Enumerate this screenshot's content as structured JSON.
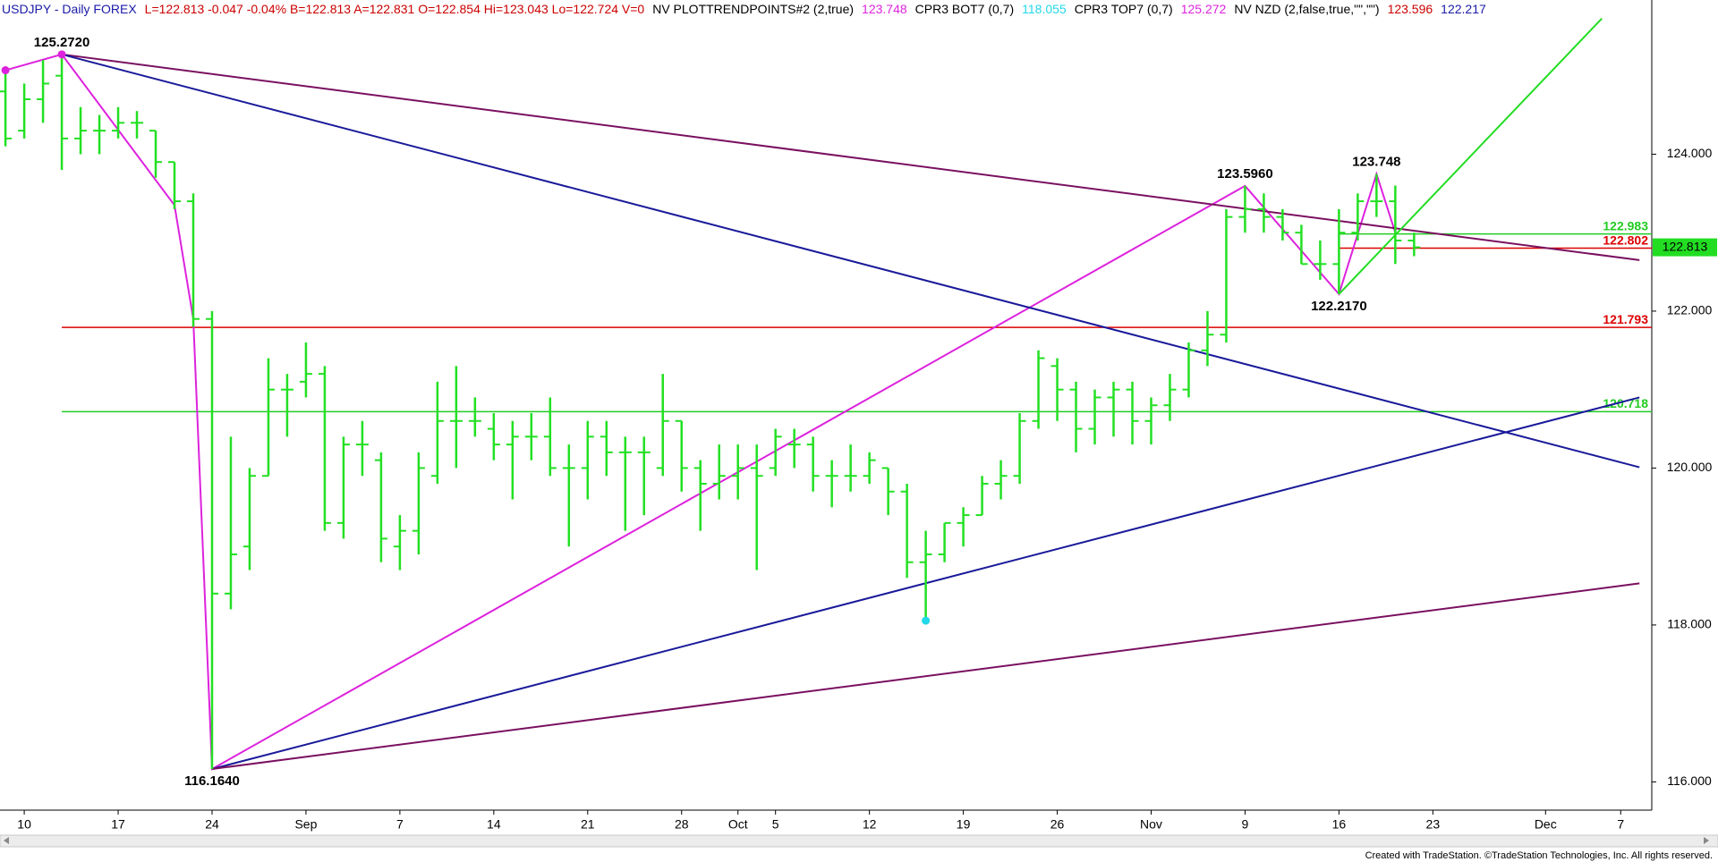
{
  "header": [
    {
      "text": "USDJPY - Daily FOREX",
      "color": "#1a1aa8"
    },
    {
      "text": "L=122.813 -0.047 -0.04% B=122.813 A=122.831 O=122.854 Hi=123.043 Lo=122.724 V=0",
      "color": "#cc0000"
    },
    {
      "text": "NV PLOTTRENDPOINTS#2 (2,true)",
      "color": "#000000"
    },
    {
      "text": "123.748",
      "color": "#dd22dd"
    },
    {
      "text": "CPR3 BOT7 (0,7)",
      "color": "#000000"
    },
    {
      "text": "118.055",
      "color": "#22d8e8"
    },
    {
      "text": "CPR3 TOP7 (0,7)",
      "color": "#000000"
    },
    {
      "text": "125.272",
      "color": "#dd22dd"
    },
    {
      "text": "NV NZD (2,false,true,\"\",\"\")",
      "color": "#000000"
    },
    {
      "text": "123.596",
      "color": "#cc0000"
    },
    {
      "text": "122.217",
      "color": "#1a1aa8"
    }
  ],
  "footer": "Created with TradeStation. ©TradeStation Technologies, Inc. All rights reserved.",
  "chart_data": {
    "type": "ohlc",
    "color": "#22e022",
    "categories": [
      null,
      "10",
      null,
      null,
      null,
      null,
      "17",
      null,
      null,
      null,
      null,
      "24",
      null,
      null,
      null,
      null,
      "Sep",
      null,
      null,
      null,
      null,
      "7",
      null,
      null,
      null,
      null,
      "14",
      null,
      null,
      null,
      null,
      "21",
      null,
      null,
      null,
      null,
      "28",
      null,
      null,
      "Oct",
      null,
      "5",
      null,
      null,
      null,
      null,
      "12",
      null,
      null,
      null,
      null,
      "19",
      null,
      null,
      null,
      null,
      "26",
      null,
      null,
      null,
      null,
      "Nov",
      null,
      null,
      null,
      null,
      "9",
      null,
      null,
      null,
      null,
      "16",
      null,
      null,
      null,
      null,
      "23",
      null,
      null,
      null,
      null,
      null,
      "Dec",
      null,
      null,
      null,
      "7",
      null
    ],
    "open": [
      124.8,
      124.3,
      124.7,
      125.0,
      124.2,
      124.3,
      124.3,
      124.4,
      124.3,
      123.9,
      123.4,
      121.9,
      118.4,
      119.0,
      119.9,
      121.0,
      121.1,
      121.2,
      119.3,
      120.3,
      120.1,
      119.0,
      119.2,
      119.9,
      120.6,
      120.6,
      120.5,
      120.3,
      120.4,
      120.4,
      120.0,
      120.0,
      120.4,
      120.2,
      120.2,
      120.0,
      120.6,
      120.0,
      119.8,
      119.9,
      120.0,
      120.0,
      120.3,
      120.3,
      119.9,
      119.9,
      119.9,
      120.0,
      119.7,
      118.8,
      118.9,
      119.3,
      119.4,
      119.8,
      119.9,
      120.6,
      121.3,
      121.0,
      120.5,
      120.9,
      121.0,
      120.6,
      120.8,
      121.0,
      121.5,
      121.7,
      123.2,
      123.3,
      123.2,
      123.0,
      122.6,
      122.6,
      123.0,
      123.4,
      123.4,
      122.9,
      null,
      null,
      null,
      null,
      null,
      null,
      null,
      null,
      null,
      null,
      null,
      null
    ],
    "high": [
      125.07,
      124.9,
      125.2,
      125.272,
      124.6,
      124.5,
      124.6,
      124.55,
      124.3,
      123.9,
      123.5,
      122.0,
      120.4,
      120.0,
      121.4,
      121.2,
      121.6,
      121.3,
      120.4,
      120.6,
      120.2,
      119.4,
      120.2,
      121.1,
      121.3,
      120.9,
      120.7,
      120.6,
      120.7,
      120.9,
      120.3,
      120.6,
      120.6,
      120.4,
      120.4,
      121.2,
      120.6,
      120.1,
      120.3,
      120.3,
      120.3,
      120.5,
      120.5,
      120.4,
      120.1,
      120.3,
      120.2,
      120.0,
      119.8,
      119.2,
      119.3,
      119.5,
      119.9,
      120.1,
      120.7,
      121.5,
      121.4,
      121.1,
      121.0,
      121.1,
      121.1,
      120.9,
      121.2,
      121.6,
      122.0,
      123.3,
      123.596,
      123.5,
      123.3,
      123.1,
      122.9,
      123.3,
      123.5,
      123.748,
      123.6,
      123.0,
      null,
      null,
      null,
      null,
      null,
      null,
      null,
      null,
      null,
      null,
      null,
      null
    ],
    "low": [
      124.1,
      124.2,
      124.4,
      123.8,
      124.0,
      124.0,
      124.2,
      124.2,
      123.7,
      123.3,
      121.8,
      116.164,
      118.2,
      118.7,
      119.9,
      120.4,
      120.9,
      119.2,
      119.1,
      119.9,
      118.8,
      118.7,
      118.9,
      119.8,
      120.0,
      120.4,
      120.1,
      119.6,
      120.1,
      119.9,
      119.0,
      119.6,
      119.9,
      119.2,
      119.4,
      119.9,
      119.7,
      119.2,
      119.6,
      119.6,
      118.7,
      119.9,
      120.0,
      119.7,
      119.5,
      119.7,
      119.8,
      119.4,
      118.6,
      118.055,
      118.8,
      119.0,
      119.4,
      119.6,
      119.8,
      120.5,
      120.6,
      120.2,
      120.3,
      120.4,
      120.3,
      120.3,
      120.6,
      120.9,
      121.3,
      121.6,
      123.0,
      123.0,
      122.9,
      122.6,
      122.4,
      122.217,
      122.9,
      123.2,
      122.6,
      122.7,
      null,
      null,
      null,
      null,
      null,
      null,
      null,
      null,
      null,
      null,
      null,
      null
    ],
    "close": [
      124.2,
      124.7,
      124.9,
      124.2,
      124.3,
      124.3,
      124.4,
      124.4,
      123.9,
      123.4,
      121.9,
      118.4,
      118.9,
      119.9,
      121.0,
      121.0,
      121.2,
      119.3,
      120.3,
      120.3,
      119.1,
      119.2,
      120.0,
      120.6,
      120.6,
      120.6,
      120.3,
      120.4,
      120.4,
      120.0,
      120.0,
      120.4,
      120.2,
      120.2,
      120.2,
      120.6,
      120.0,
      119.8,
      119.9,
      120.0,
      119.9,
      120.4,
      120.3,
      119.9,
      119.9,
      119.9,
      120.1,
      119.7,
      118.8,
      118.9,
      119.3,
      119.4,
      119.8,
      119.9,
      120.6,
      121.4,
      121.0,
      120.5,
      120.9,
      121.0,
      120.6,
      120.8,
      121.0,
      121.5,
      121.7,
      123.2,
      123.3,
      123.2,
      123.0,
      122.6,
      122.6,
      123.0,
      123.4,
      123.4,
      122.9,
      122.813,
      null,
      null,
      null,
      null,
      null,
      null,
      null,
      null,
      null,
      null,
      null,
      null
    ],
    "ylim": [
      115.64,
      125.76
    ],
    "yticks": [
      {
        "value": 116,
        "label": "116.000"
      },
      {
        "value": 118,
        "label": "118.000"
      },
      {
        "value": 120,
        "label": "120.000"
      },
      {
        "value": 122,
        "label": "122.000"
      },
      {
        "value": 124,
        "label": "124.000"
      }
    ],
    "trendlines": [
      {
        "color": "#dd22dd",
        "x": [
          0,
          3,
          9,
          10,
          11,
          66,
          71,
          73,
          74
        ],
        "y": [
          125.07,
          125.272,
          123.35,
          121.9,
          116.164,
          123.596,
          122.217,
          123.748,
          123.0
        ]
      },
      {
        "color": "#7a1060",
        "x": [
          3,
          87
        ],
        "y": [
          125.272,
          122.65
        ]
      },
      {
        "color": "#1a1a9a",
        "x": [
          3,
          87
        ],
        "y": [
          125.272,
          120.01
        ]
      },
      {
        "color": "#1a1a9a",
        "x": [
          11,
          87
        ],
        "y": [
          116.164,
          120.9
        ]
      },
      {
        "color": "#7a1060",
        "x": [
          11,
          87
        ],
        "y": [
          116.164,
          118.53
        ]
      },
      {
        "color": "#22dd22",
        "x": [
          71,
          85
        ],
        "y": [
          122.217,
          125.73
        ]
      }
    ],
    "levels": [
      {
        "value": 121.793,
        "color": "#dd0000",
        "from": 3
      },
      {
        "value": 120.718,
        "color": "#22cc22",
        "from": 3
      },
      {
        "value": 122.983,
        "color": "#22cc22",
        "from": 71
      },
      {
        "value": 122.802,
        "color": "#dd0000",
        "from": 71
      }
    ],
    "markers": [
      {
        "x": 0,
        "value": 125.07,
        "color": "#dd22dd"
      },
      {
        "x": 3,
        "value": 125.272,
        "color": "#dd22dd"
      },
      {
        "x": 49,
        "value": 118.055,
        "color": "#22d8e8"
      }
    ],
    "annotations": [
      {
        "x": 3,
        "value": 125.272,
        "label": "125.2720"
      },
      {
        "x": 11,
        "value": 116.164,
        "label": "116.1640"
      },
      {
        "x": 66,
        "value": 123.596,
        "label": "123.5960"
      },
      {
        "x": 71,
        "value": 122.217,
        "label": "122.2170"
      },
      {
        "x": 73,
        "value": 123.748,
        "label": "123.748"
      }
    ],
    "last": 122.813,
    "last_color": "#22dd22"
  }
}
